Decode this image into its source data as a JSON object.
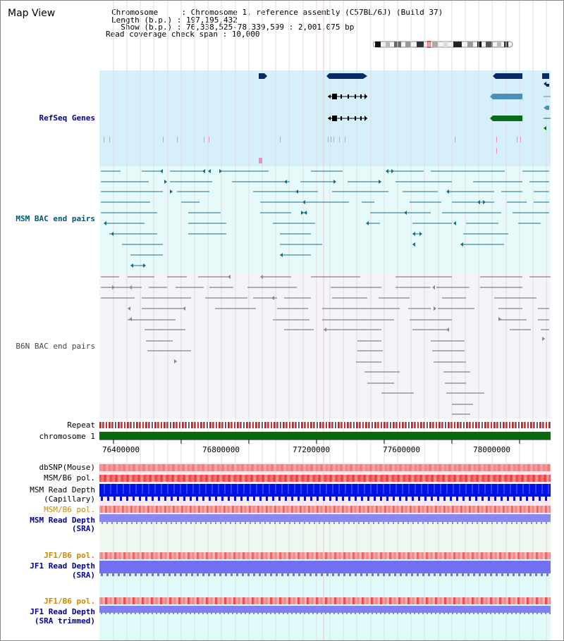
{
  "title": "Map View",
  "info": {
    "chromosome_label": "Chromosome     : ",
    "chromosome_value": "Chromosome 1, reference assembly (C57BL/6J) (Build 37)",
    "length_label": "Length (b.p.) : ",
    "length_value": "197,195,432",
    "show_label": "  Show (b.p.) : ",
    "show_value": "76,338,525-78,339,599 : 2,001,075 bp",
    "coverage_label": "Read coverage check span : ",
    "coverage_value": "10,000"
  },
  "tracks": {
    "refseq": "RefSeq Genes",
    "msm_bac": "MSM BAC end pairs",
    "b6n_bac": "B6N BAC end pairs",
    "repeat": "Repeat",
    "chromosome": "chromosome 1",
    "dbsnp": "dbSNP(Mouse)",
    "msm_b6_pol_1": "MSM/B6 pol.",
    "msm_read_depth_cap_1": "MSM Read Depth",
    "msm_read_depth_cap_2": "(Capillary)",
    "msm_b6_pol_2": "MSM/B6 pol.",
    "msm_read_depth_sra_1": "MSM Read Depth",
    "msm_read_depth_sra_2": "(SRA)",
    "jf1_b6_pol_1": "JF1/B6 pol.",
    "jf1_read_depth_sra_1": "JF1 Read Depth",
    "jf1_read_depth_sra_2": "(SRA)",
    "jf1_b6_pol_2": "JF1/B6 pol.",
    "jf1_read_depth_trim_1": "JF1 Read Depth",
    "jf1_read_depth_trim_2": "(SRA trimmed)"
  },
  "axis_ticks": [
    "76400000",
    "76800000",
    "77200000",
    "77600000",
    "78000000"
  ],
  "colors": {
    "refseq_bg": "#d6f0fa",
    "msm_bg": "#e6fafa",
    "b6n_bg": "#f4f4f8",
    "gene_navy": "#0a2a66",
    "gene_teal": "#4a90b8",
    "gene_green": "#0a6a1a",
    "msm_line": "#1a6a8a",
    "b6n_line": "#666666",
    "chrom_green": "#0a6a0a",
    "label_blue": "#000099",
    "label_orange": "#cc8800",
    "label_teal": "#005577"
  }
}
